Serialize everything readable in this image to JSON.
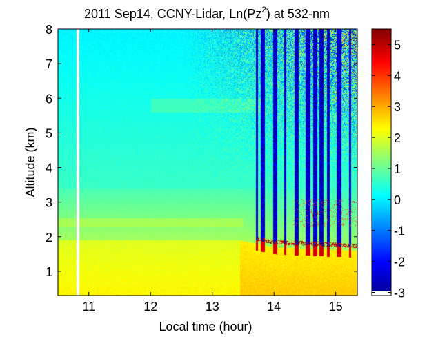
{
  "chart_data": {
    "type": "heatmap",
    "title": {
      "prefix": "2011 Sep14, CCNY-Lidar, Ln(Pz",
      "superscript": "2",
      "suffix": ") at 532-nm"
    },
    "xlabel": "Local time (hour)",
    "ylabel": "Altitude (km)",
    "xlim": [
      10.5,
      15.35
    ],
    "ylim": [
      0.3,
      8
    ],
    "x_ticks": [
      11,
      12,
      13,
      14,
      15
    ],
    "y_ticks": [
      1,
      2,
      3,
      4,
      5,
      6,
      7,
      8
    ],
    "x_tick_labels": [
      "11",
      "12",
      "13",
      "14",
      "15"
    ],
    "y_tick_labels": [
      "1",
      "2",
      "3",
      "4",
      "5",
      "6",
      "7",
      "8"
    ],
    "colorbar": {
      "colormap": "jet",
      "range": [
        -3.1,
        5.5
      ],
      "ticks": [
        -3,
        -2,
        -1,
        0,
        1,
        2,
        3,
        4,
        5
      ],
      "tick_labels": [
        "-3",
        "-2",
        "-1",
        "0",
        "1",
        "2",
        "3",
        "4",
        "5"
      ]
    },
    "data_gaps": [
      {
        "x_start": 10.8,
        "x_end": 10.84
      }
    ],
    "field": {
      "boundary_layer_top_km": [
        [
          10.5,
          1.9
        ],
        [
          12.5,
          1.9
        ],
        [
          13.45,
          1.9
        ],
        [
          14.0,
          1.7
        ],
        [
          15.35,
          1.6
        ]
      ],
      "cloud_onset_hour": 13.7,
      "cloud_layer_km": [
        2.3,
        2.55
      ],
      "high_noise_start_hour": 12.5,
      "mid_layer_km": [
        5.6,
        6.0
      ],
      "bl_jump_hour": 13.45
    }
  }
}
